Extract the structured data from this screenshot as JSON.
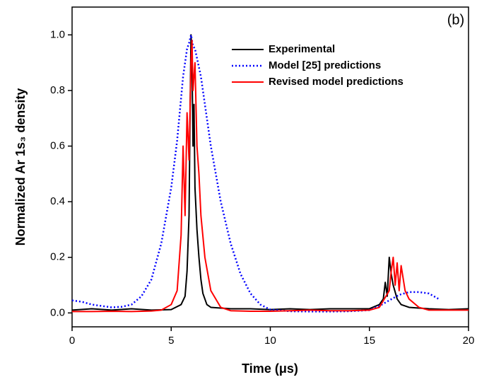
{
  "chart_data": {
    "type": "line",
    "xlabel": "Time (μs)",
    "ylabel": "Normalized Ar 1s₃ density",
    "annotation": "(b)",
    "xlim": [
      0,
      20
    ],
    "ylim": [
      -0.05,
      1.1
    ],
    "xticks": [
      0,
      5,
      10,
      15,
      20
    ],
    "yticks": [
      {
        "value": 0,
        "label": "0.0"
      },
      0.2,
      0.4,
      0.6,
      0.8,
      {
        "value": 1,
        "label": "1.0"
      }
    ],
    "legend": "upper right",
    "series": [
      {
        "name": "Experimental",
        "color": "#000000",
        "style": "solid",
        "x": [
          0,
          1,
          2,
          3,
          4,
          5,
          5.5,
          5.7,
          5.8,
          5.9,
          5.95,
          6.0,
          6.05,
          6.1,
          6.15,
          6.2,
          6.3,
          6.4,
          6.5,
          6.6,
          6.8,
          7,
          8,
          9,
          10,
          11,
          12,
          13,
          14,
          15,
          15.5,
          15.7,
          15.8,
          15.9,
          16.0,
          16.1,
          16.2,
          16.4,
          16.6,
          17,
          18,
          19,
          20
        ],
        "values": [
          0.01,
          0.015,
          0.01,
          0.015,
          0.01,
          0.012,
          0.03,
          0.06,
          0.15,
          0.35,
          0.7,
          1.0,
          0.9,
          0.6,
          0.75,
          0.45,
          0.3,
          0.2,
          0.12,
          0.07,
          0.03,
          0.02,
          0.015,
          0.015,
          0.012,
          0.015,
          0.012,
          0.015,
          0.015,
          0.015,
          0.03,
          0.05,
          0.11,
          0.06,
          0.2,
          0.14,
          0.1,
          0.05,
          0.03,
          0.02,
          0.015,
          0.012,
          0.015
        ]
      },
      {
        "name": "Model [25] predictions",
        "color": "#0000ff",
        "style": "dotted",
        "x": [
          0,
          0.5,
          1,
          1.5,
          2,
          2.5,
          3,
          3.5,
          4,
          4.5,
          5,
          5.3,
          5.6,
          5.8,
          5.9,
          6.0,
          6.1,
          6.2,
          6.5,
          6.8,
          7,
          7.5,
          8,
          8.5,
          9,
          9.5,
          10,
          11,
          12,
          13,
          14,
          15,
          15.5,
          16,
          16.5,
          17,
          17.5,
          18,
          18.5
        ],
        "values": [
          0.045,
          0.04,
          0.03,
          0.025,
          0.02,
          0.022,
          0.03,
          0.06,
          0.12,
          0.25,
          0.45,
          0.62,
          0.85,
          0.95,
          0.97,
          1.0,
          0.96,
          0.95,
          0.85,
          0.7,
          0.6,
          0.4,
          0.25,
          0.14,
          0.07,
          0.03,
          0.012,
          0.006,
          0.005,
          0.005,
          0.006,
          0.01,
          0.025,
          0.045,
          0.065,
          0.075,
          0.075,
          0.07,
          0.05
        ]
      },
      {
        "name": "Revised model predictions",
        "color": "#ff0000",
        "style": "solid",
        "x": [
          0,
          1,
          2,
          3,
          4,
          4.5,
          5,
          5.3,
          5.5,
          5.6,
          5.7,
          5.8,
          5.9,
          6.0,
          6.05,
          6.1,
          6.2,
          6.3,
          6.4,
          6.5,
          6.7,
          7,
          7.5,
          8,
          9,
          10,
          11,
          12,
          13,
          14,
          15,
          15.5,
          16,
          16.1,
          16.2,
          16.3,
          16.4,
          16.5,
          16.6,
          16.8,
          17,
          17.5,
          18,
          19,
          20
        ],
        "values": [
          0.005,
          0.005,
          0.006,
          0.005,
          0.007,
          0.01,
          0.03,
          0.08,
          0.28,
          0.6,
          0.35,
          0.72,
          0.55,
          0.9,
          0.98,
          0.8,
          0.9,
          0.6,
          0.5,
          0.35,
          0.2,
          0.08,
          0.02,
          0.008,
          0.006,
          0.006,
          0.008,
          0.01,
          0.008,
          0.008,
          0.01,
          0.02,
          0.08,
          0.15,
          0.2,
          0.1,
          0.18,
          0.08,
          0.17,
          0.08,
          0.05,
          0.02,
          0.01,
          0.01,
          0.01
        ]
      }
    ]
  }
}
